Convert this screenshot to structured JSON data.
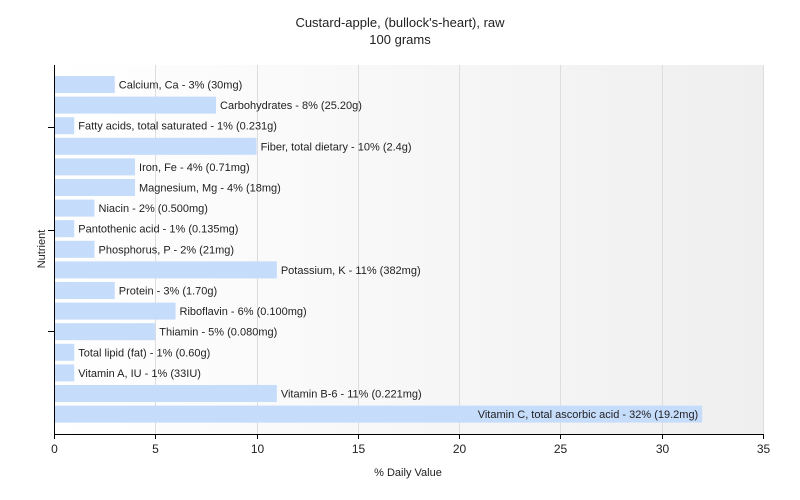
{
  "chart_data": {
    "type": "bar",
    "orientation": "horizontal",
    "title": "Custard-apple, (bullock's-heart), raw",
    "subtitle": "100 grams",
    "xlabel": "% Daily Value",
    "ylabel": "Nutrient",
    "xlim": [
      0,
      35
    ],
    "xticks": [
      0,
      5,
      10,
      15,
      20,
      25,
      30,
      35
    ],
    "grid": true,
    "bar_color": "#c6dcfb",
    "categories": [
      "Calcium, Ca - 3% (30mg)",
      "Carbohydrates - 8% (25.20g)",
      "Fatty acids, total saturated - 1% (0.231g)",
      "Fiber, total dietary - 10% (2.4g)",
      "Iron, Fe - 4% (0.71mg)",
      "Magnesium, Mg - 4% (18mg)",
      "Niacin - 2% (0.500mg)",
      "Pantothenic acid - 1% (0.135mg)",
      "Phosphorus, P - 2% (21mg)",
      "Potassium, K - 11% (382mg)",
      "Protein - 3% (1.70g)",
      "Riboflavin - 6% (0.100mg)",
      "Thiamin - 5% (0.080mg)",
      "Total lipid (fat) - 1% (0.60g)",
      "Vitamin A, IU - 1% (33IU)",
      "Vitamin B-6 - 11% (0.221mg)",
      "Vitamin C, total ascorbic acid - 32% (19.2mg)"
    ],
    "values": [
      3,
      8,
      1,
      10,
      4,
      4,
      2,
      1,
      2,
      11,
      3,
      6,
      5,
      1,
      1,
      11,
      32
    ]
  }
}
